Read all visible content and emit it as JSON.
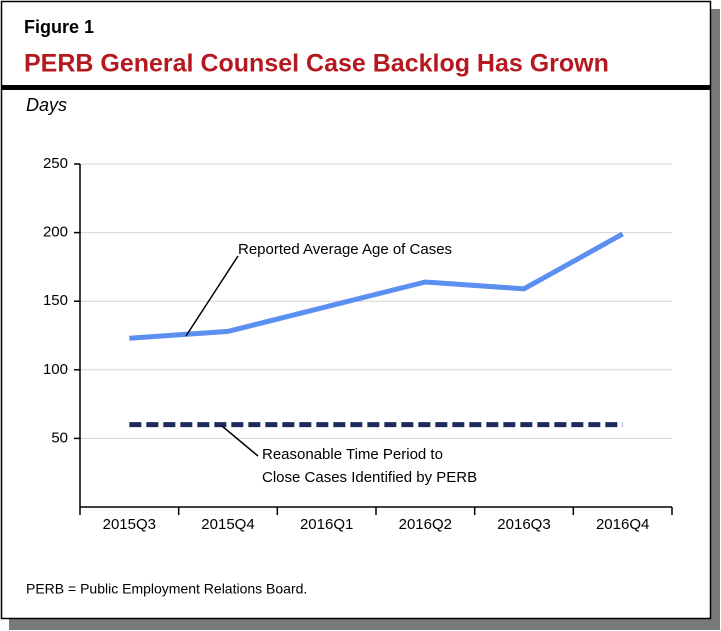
{
  "chart_data": {
    "type": "line",
    "figure_label": "Figure 1",
    "title": "PERB General Counsel Case Backlog Has Grown",
    "y_label": "Days",
    "categories": [
      "2015Q3",
      "2015Q4",
      "2016Q1",
      "2016Q2",
      "2016Q3",
      "2016Q4"
    ],
    "series": [
      {
        "color": "#5b8ff0",
        "dashed": false,
        "values": [
          123,
          128,
          146,
          164,
          159,
          199
        ]
      },
      {
        "color": "#1a2b5e",
        "dashed": true,
        "values": [
          60,
          60,
          60,
          60,
          60,
          60
        ]
      }
    ],
    "annotations": [
      {
        "lines": [
          "Reported Average Age of Cases"
        ]
      },
      {
        "lines": [
          "Reasonable Time Period to",
          "Close Cases Identified by PERB"
        ]
      }
    ],
    "ylim": [
      0,
      250
    ],
    "yticks": [
      50,
      100,
      150,
      200,
      250
    ],
    "grid": true,
    "footnote": "PERB = Public Employment Relations Board."
  }
}
